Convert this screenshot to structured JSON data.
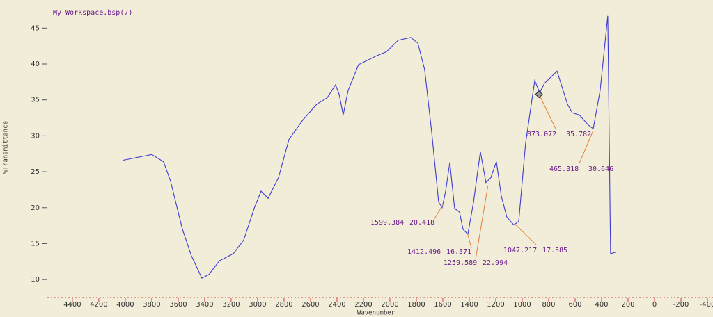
{
  "chart_data": {
    "type": "line",
    "title": "My Workspace.bsp(7)",
    "x_label": "Wavenumber",
    "y_label": "%Transmittance",
    "xlim": [
      4589,
      -442
    ],
    "ylim": [
      7.5,
      48.9
    ],
    "xticks": [
      4400,
      4200,
      4000,
      3800,
      3600,
      3400,
      3200,
      3000,
      2800,
      2600,
      2400,
      2200,
      2000,
      1800,
      1600,
      1400,
      1200,
      1000,
      800,
      600,
      400,
      200,
      0,
      -200,
      -400
    ],
    "yticks": [
      10,
      15,
      20,
      25,
      30,
      35,
      40,
      45
    ],
    "series": [
      {
        "color": "#3c3cd2",
        "x": [
          4016,
          3800,
          3711,
          3658,
          3568,
          3500,
          3421,
          3368,
          3289,
          3184,
          3105,
          3026,
          2974,
          2921,
          2842,
          2763,
          2658,
          2553,
          2474,
          2411,
          2384,
          2353,
          2316,
          2237,
          2105,
          2026,
          1937,
          1842,
          1789,
          1737,
          1684,
          1632,
          1605,
          1579,
          1547,
          1511,
          1474,
          1447,
          1411,
          1368,
          1316,
          1274,
          1237,
          1195,
          1158,
          1116,
          1063,
          1026,
          974,
          905,
          868,
          832,
          737,
          658,
          621,
          568,
          500,
          463,
          411,
          353,
          332,
          295
        ],
        "values": [
          26.6,
          27.4,
          26.4,
          23.7,
          17.0,
          13.3,
          10.2,
          10.7,
          12.6,
          13.6,
          15.5,
          19.9,
          22.3,
          21.3,
          24.2,
          29.5,
          32.2,
          34.4,
          35.3,
          37.1,
          35.8,
          32.9,
          36.3,
          39.9,
          41.1,
          41.7,
          43.3,
          43.7,
          42.9,
          39.2,
          30.5,
          20.8,
          20.0,
          22.3,
          26.3,
          19.9,
          19.4,
          17.0,
          16.3,
          20.8,
          27.8,
          23.5,
          24.2,
          26.4,
          21.6,
          18.7,
          17.6,
          18.1,
          29.0,
          37.7,
          36.0,
          37.3,
          39.0,
          34.4,
          33.2,
          32.9,
          31.5,
          31.0,
          36.3,
          46.7,
          13.6,
          13.8
        ]
      }
    ],
    "annotations": [
      {
        "x": 1599.384,
        "y": 20.418
      },
      {
        "x": 1412.496,
        "y": 16.371
      },
      {
        "x": 1259.589,
        "y": 22.994
      },
      {
        "x": 1047.217,
        "y": 17.585
      },
      {
        "x": 873.072,
        "y": 35.782
      },
      {
        "x": 465.318,
        "y": 30.646
      }
    ]
  }
}
